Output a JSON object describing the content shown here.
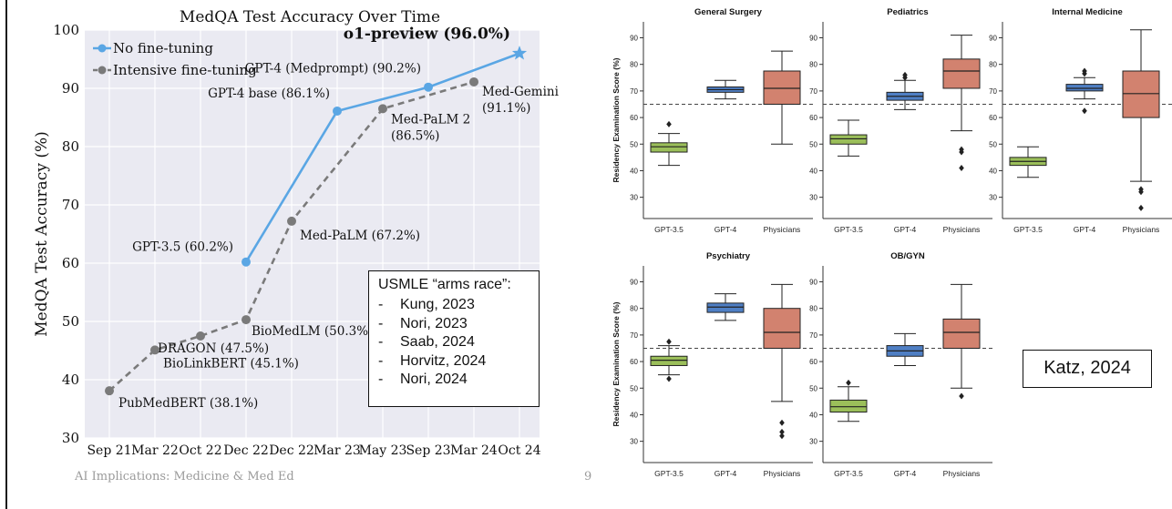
{
  "footer": {
    "text": "AI Implications: Medicine & Med Ed",
    "page": "9"
  },
  "chart_data": [
    {
      "type": "line",
      "title": "MedQA Test Accuracy Over Time",
      "ylabel": "MedQA Test Accuracy (%)",
      "xlabel": "",
      "ylim": [
        30,
        100
      ],
      "yticks": [
        30,
        40,
        50,
        60,
        70,
        80,
        90,
        100
      ],
      "categories": [
        "Sep 21",
        "Mar 22",
        "Oct 22",
        "Dec 22",
        "Dec 22",
        "Mar 23",
        "May 23",
        "Sep 23",
        "Mar 24",
        "Oct 24"
      ],
      "grid": true,
      "legend_placement": "top-left",
      "series": [
        {
          "name": "No fine-tuning",
          "color": "#5aa6e4",
          "line_style": "solid",
          "points": [
            {
              "x": 3,
              "y": 60.2,
              "label": "GPT-3.5 (60.2%)"
            },
            {
              "x": 5,
              "y": 86.1,
              "label": "GPT-4 base (86.1%)"
            },
            {
              "x": 7,
              "y": 90.2,
              "label": "GPT-4 (Medprompt) (90.2%)"
            },
            {
              "x": 9,
              "y": 96.0,
              "label": "o1-preview (96.0%)",
              "marker": "star"
            }
          ]
        },
        {
          "name": "Intensive fine-tuning",
          "color": "#7a7a7a",
          "line_style": "dashed",
          "points": [
            {
              "x": 0,
              "y": 38.1,
              "label": "PubMedBERT (38.1%)"
            },
            {
              "x": 1,
              "y": 45.1,
              "label": "BioLinkBERT (45.1%)"
            },
            {
              "x": 2,
              "y": 47.5,
              "label": "DRAGON (47.5%)"
            },
            {
              "x": 3,
              "y": 50.3,
              "label": "BioMedLM (50.3%)"
            },
            {
              "x": 4,
              "y": 67.2,
              "label": "Med-PaLM (67.2%)"
            },
            {
              "x": 6,
              "y": 86.5,
              "label": "Med-PaLM 2 (86.5%)"
            },
            {
              "x": 8,
              "y": 91.1,
              "label": "Med-Gemini (91.1%)"
            }
          ]
        }
      ],
      "annotation_box": {
        "title": "USMLE “arms race”:",
        "items": [
          "Kung, 2023",
          "Nori, 2023",
          "Saab, 2024",
          "Horvitz, 2024",
          "Nori, 2024"
        ]
      }
    },
    {
      "type": "boxplot",
      "ylabel": "Residency Examination Score (%)",
      "ylim": [
        22,
        96
      ],
      "yticks": [
        30,
        40,
        50,
        60,
        70,
        80,
        90
      ],
      "reference_line": 65,
      "categories": [
        "GPT-3.5",
        "GPT-4",
        "Physicians"
      ],
      "colors": {
        "GPT-3.5": "#9bbf5a",
        "GPT-4": "#4f7fc4",
        "Physicians": "#d2826f"
      },
      "caption": "Katz, 2024",
      "panels": [
        {
          "title": "General Surgery",
          "boxes": [
            {
              "label": "GPT-3.5",
              "whislo": 42,
              "q1": 47,
              "med": 49,
              "q3": 50.5,
              "whishi": 54,
              "fliers": [
                57.5
              ]
            },
            {
              "label": "GPT-4",
              "whislo": 67,
              "q1": 69.5,
              "med": 70.5,
              "q3": 71.5,
              "whishi": 74,
              "fliers": []
            },
            {
              "label": "Physicians",
              "whislo": 50,
              "q1": 65,
              "med": 71,
              "q3": 77.5,
              "whishi": 85,
              "fliers": []
            }
          ]
        },
        {
          "title": "Pediatrics",
          "boxes": [
            {
              "label": "GPT-3.5",
              "whislo": 45.5,
              "q1": 50,
              "med": 52,
              "q3": 53.5,
              "whishi": 59,
              "fliers": []
            },
            {
              "label": "GPT-4",
              "whislo": 63,
              "q1": 66.5,
              "med": 68,
              "q3": 69.5,
              "whishi": 74,
              "fliers": [
                75,
                76
              ]
            },
            {
              "label": "Physicians",
              "whislo": 55,
              "q1": 71,
              "med": 77.5,
              "q3": 82,
              "whishi": 91,
              "fliers": [
                41,
                47,
                48
              ]
            }
          ]
        },
        {
          "title": "Internal Medicine",
          "boxes": [
            {
              "label": "GPT-3.5",
              "whislo": 37.5,
              "q1": 42,
              "med": 43.5,
              "q3": 45,
              "whishi": 49,
              "fliers": []
            },
            {
              "label": "GPT-4",
              "whislo": 67,
              "q1": 70,
              "med": 71,
              "q3": 72.5,
              "whishi": 75,
              "fliers": [
                62.5,
                76.5,
                77.5
              ]
            },
            {
              "label": "Physicians",
              "whislo": 36,
              "q1": 60,
              "med": 69,
              "q3": 77.5,
              "whishi": 93,
              "fliers": [
                26,
                32,
                33
              ]
            }
          ]
        },
        {
          "title": "Psychiatry",
          "boxes": [
            {
              "label": "GPT-3.5",
              "whislo": 55,
              "q1": 58.5,
              "med": 60.5,
              "q3": 62,
              "whishi": 66,
              "fliers": [
                53.5,
                67.5
              ]
            },
            {
              "label": "GPT-4",
              "whislo": 75.5,
              "q1": 78.5,
              "med": 80.5,
              "q3": 82,
              "whishi": 85.5,
              "fliers": []
            },
            {
              "label": "Physicians",
              "whislo": 45,
              "q1": 65,
              "med": 71,
              "q3": 80,
              "whishi": 89,
              "fliers": [
                32,
                33.5,
                37
              ]
            }
          ]
        },
        {
          "title": "OB/GYN",
          "boxes": [
            {
              "label": "GPT-3.5",
              "whislo": 37.5,
              "q1": 41,
              "med": 43,
              "q3": 45.5,
              "whishi": 50.5,
              "fliers": [
                52
              ]
            },
            {
              "label": "GPT-4",
              "whislo": 58.5,
              "q1": 62,
              "med": 64,
              "q3": 66,
              "whishi": 70.5,
              "fliers": []
            },
            {
              "label": "Physicians",
              "whislo": 50,
              "q1": 65,
              "med": 71,
              "q3": 76,
              "whishi": 89,
              "fliers": [
                47
              ]
            }
          ]
        }
      ]
    }
  ]
}
